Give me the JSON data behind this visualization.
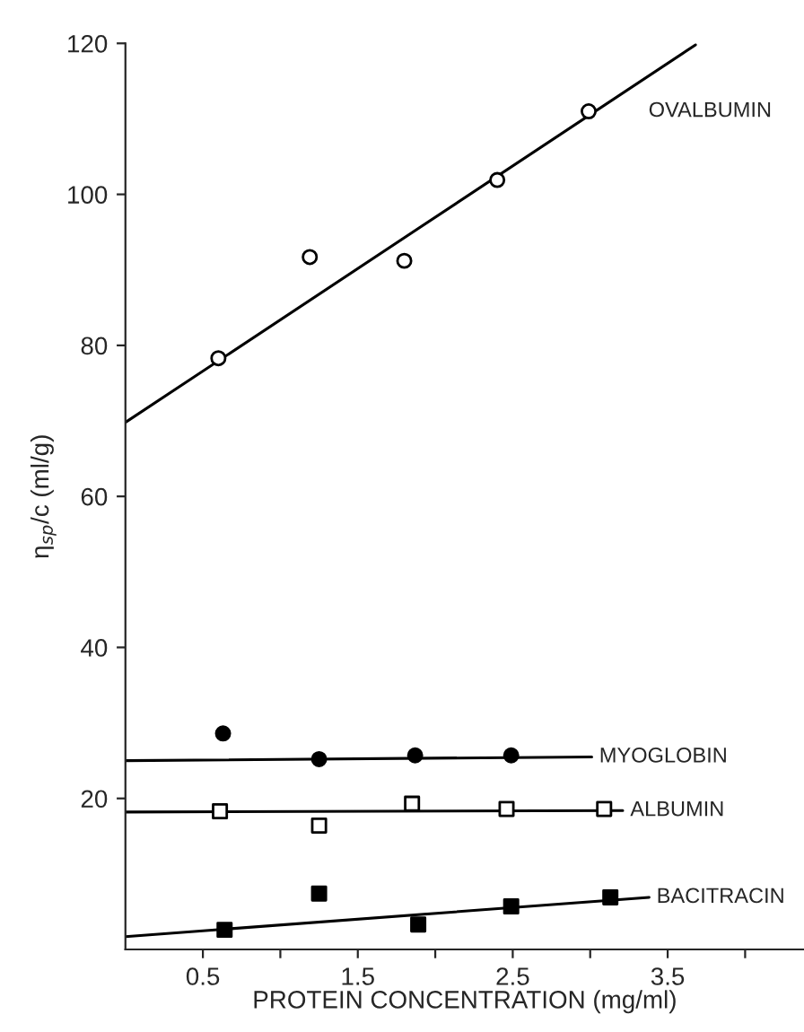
{
  "chart_data": {
    "type": "scatter",
    "ylabel": "η$_{sp}$/c (ml/g)",
    "xlabel": "PROTEIN CONCENTRATION (mg/ml)",
    "xlim": [
      0,
      4.38
    ],
    "xticks": [
      0.5,
      {
        "value": 1.0,
        "label": null
      },
      1.5,
      {
        "value": 2.0,
        "label": null
      },
      2.5,
      {
        "value": 3.0,
        "label": null
      },
      3.5,
      {
        "value": 4.0,
        "label": null
      }
    ],
    "ylim": [
      0,
      120
    ],
    "yticks": [
      20,
      40,
      60,
      80,
      100,
      120
    ],
    "grid": false,
    "legend": false,
    "series": [
      {
        "name": "OVALBUMIN",
        "marker": "circle",
        "color": "#ffffff",
        "x": [
          0.6,
          1.19,
          1.8,
          2.4,
          2.99
        ],
        "values": [
          78.3,
          91.7,
          91.2,
          101.9,
          111.0
        ]
      },
      {
        "type": "line",
        "marker": "none",
        "color": "#000000",
        "x": [
          0,
          3.68
        ],
        "values": [
          69.8,
          119.8
        ]
      },
      {
        "marker": "circle",
        "color": "#000000",
        "x": [
          0.63,
          1.25,
          1.87,
          2.49
        ],
        "values": [
          28.6,
          25.2,
          25.7,
          25.7
        ]
      },
      {
        "name": "MYOGLOBIN",
        "type": "line",
        "marker": "none",
        "color": "#000000",
        "x": [
          0,
          3.01
        ],
        "values": [
          25.0,
          25.5
        ]
      },
      {
        "marker": "square",
        "color": "#ffffff",
        "x": [
          0.61,
          1.25,
          1.85,
          2.46,
          3.09
        ],
        "values": [
          18.3,
          16.4,
          19.3,
          18.6,
          18.6
        ]
      },
      {
        "name": "ALBUMIN",
        "type": "line",
        "marker": "none",
        "color": "#000000",
        "x": [
          0,
          3.21
        ],
        "values": [
          18.2,
          18.4
        ]
      },
      {
        "marker": "square",
        "color": "#000000",
        "x": [
          0.64,
          1.25,
          1.89,
          2.49,
          3.13
        ],
        "values": [
          2.6,
          7.4,
          3.3,
          5.7,
          6.9
        ]
      },
      {
        "name": "BACITRACIN",
        "type": "line",
        "marker": "none",
        "color": "#000000",
        "x": [
          0,
          3.38
        ],
        "values": [
          1.7,
          6.9
        ]
      }
    ]
  }
}
